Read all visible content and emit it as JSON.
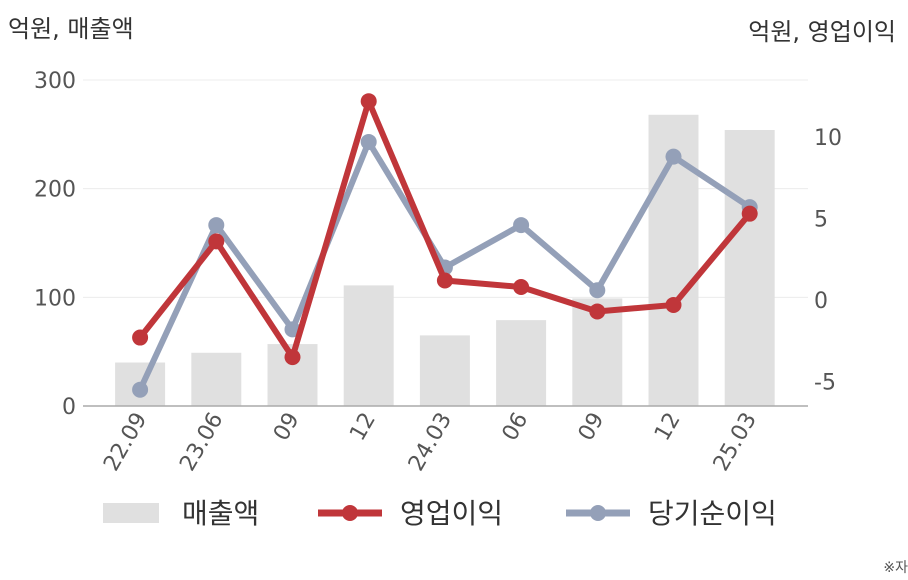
{
  "chart_data": {
    "type": "bar+line",
    "left_axis_unit": "억원, 매출액",
    "right_axis_unit": "억원, 영업이익",
    "categories": [
      "22.09",
      "23.06",
      "09",
      "12",
      "24.03",
      "06",
      "09",
      "12",
      "25.03"
    ],
    "left_ylim": [
      0,
      300
    ],
    "left_yticks": [
      0,
      100,
      200,
      300
    ],
    "right_ylim": [
      -6.5,
      13.5
    ],
    "right_yticks": [
      -5,
      0,
      5,
      10
    ],
    "grid": true,
    "legend_position": "bottom",
    "series": [
      {
        "name": "매출액",
        "type": "bar",
        "axis": "left",
        "color": "#e0e0e0",
        "values": [
          40,
          49,
          57,
          111,
          65,
          79,
          99,
          268,
          254
        ]
      },
      {
        "name": "영업이익",
        "type": "line",
        "axis": "right",
        "color": "#c0363a",
        "values": [
          -2.3,
          3.6,
          -3.5,
          12.2,
          1.2,
          0.8,
          -0.7,
          -0.3,
          5.3
        ]
      },
      {
        "name": "당기순이익",
        "type": "line",
        "axis": "right",
        "color": "#94a0b8",
        "values": [
          -5.5,
          4.6,
          -1.8,
          9.7,
          2.0,
          4.6,
          0.6,
          8.8,
          5.7
        ]
      }
    ]
  },
  "footnote": "※자"
}
